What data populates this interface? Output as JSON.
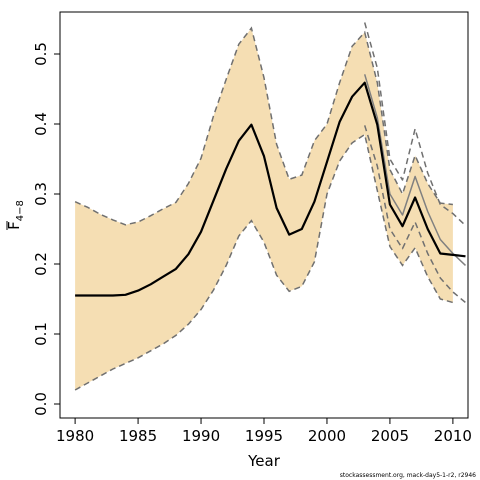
{
  "chart_data": {
    "type": "line",
    "title": "",
    "xlabel": "Year",
    "ylabel_main": "F",
    "ylabel_sub": "4−8",
    "xlim": [
      1978.8,
      2011.2
    ],
    "ylim": [
      -0.02,
      0.56
    ],
    "x_ticks": [
      1980,
      1985,
      1990,
      1995,
      2000,
      2005,
      2010
    ],
    "x_tick_labels": [
      "1980",
      "1985",
      "1990",
      "1995",
      "2000",
      "2005",
      "2010"
    ],
    "y_ticks": [
      0.0,
      0.1,
      0.2,
      0.3,
      0.4,
      0.5
    ],
    "y_tick_labels": [
      "0.0",
      "0.1",
      "0.2",
      "0.3",
      "0.4",
      "0.5"
    ],
    "grid": false,
    "legend": "none",
    "footnote": "stockassessment.org, mack-day5-1-r2, r2946",
    "colors": {
      "band": "#f5deb3",
      "estimate": "#000000",
      "alt_estimate": "#808080",
      "alt_bounds": "#707070"
    },
    "series": [
      {
        "role": "confidence_band",
        "x": [
          1980,
          1981,
          1982,
          1983,
          1984,
          1985,
          1986,
          1987,
          1988,
          1989,
          1990,
          1991,
          1992,
          1993,
          1994,
          1995,
          1996,
          1997,
          1998,
          1999,
          2000,
          2001,
          2002,
          2003,
          2004,
          2005,
          2006,
          2007,
          2008,
          2009,
          2010
        ],
        "lower": [
          0.02,
          0.03,
          0.04,
          0.05,
          0.058,
          0.066,
          0.076,
          0.086,
          0.098,
          0.114,
          0.135,
          0.163,
          0.198,
          0.24,
          0.262,
          0.231,
          0.184,
          0.161,
          0.168,
          0.203,
          0.3,
          0.347,
          0.373,
          0.385,
          0.305,
          0.225,
          0.198,
          0.223,
          0.182,
          0.15,
          0.145
        ],
        "upper": [
          0.289,
          0.281,
          0.271,
          0.263,
          0.256,
          0.26,
          0.269,
          0.279,
          0.288,
          0.315,
          0.351,
          0.412,
          0.464,
          0.514,
          0.537,
          0.466,
          0.371,
          0.321,
          0.327,
          0.376,
          0.4,
          0.459,
          0.511,
          0.531,
          0.459,
          0.335,
          0.3,
          0.355,
          0.315,
          0.287,
          0.285
        ]
      },
      {
        "role": "estimate",
        "x": [
          1980,
          1981,
          1982,
          1983,
          1984,
          1985,
          1986,
          1987,
          1988,
          1989,
          1990,
          1991,
          1992,
          1993,
          1994,
          1995,
          1996,
          1997,
          1998,
          1999,
          2000,
          2001,
          2002,
          2003,
          2004,
          2005,
          2006,
          2007,
          2008,
          2009,
          2010,
          2011
        ],
        "values": [
          0.155,
          0.155,
          0.155,
          0.155,
          0.156,
          0.162,
          0.171,
          0.182,
          0.193,
          0.214,
          0.246,
          0.291,
          0.336,
          0.376,
          0.399,
          0.354,
          0.28,
          0.242,
          0.25,
          0.289,
          0.346,
          0.403,
          0.439,
          0.459,
          0.399,
          0.285,
          0.254,
          0.295,
          0.25,
          0.215,
          0.213,
          0.211
        ]
      },
      {
        "role": "alt_estimate",
        "x": [
          2003,
          2004,
          2005,
          2006,
          2007,
          2008,
          2009,
          2010,
          2011
        ],
        "values": [
          0.471,
          0.409,
          0.3,
          0.27,
          0.325,
          0.275,
          0.235,
          0.215,
          0.198
        ]
      },
      {
        "role": "alt_upper",
        "x": [
          2003,
          2004,
          2005,
          2006,
          2007,
          2008,
          2009,
          2010,
          2011
        ],
        "values": [
          0.545,
          0.48,
          0.35,
          0.32,
          0.393,
          0.33,
          0.285,
          0.272,
          0.255
        ]
      },
      {
        "role": "alt_lower",
        "x": [
          2003,
          2004,
          2005,
          2006,
          2007,
          2008,
          2009,
          2010,
          2011
        ],
        "values": [
          0.398,
          0.34,
          0.25,
          0.222,
          0.26,
          0.215,
          0.18,
          0.16,
          0.145
        ]
      }
    ]
  }
}
